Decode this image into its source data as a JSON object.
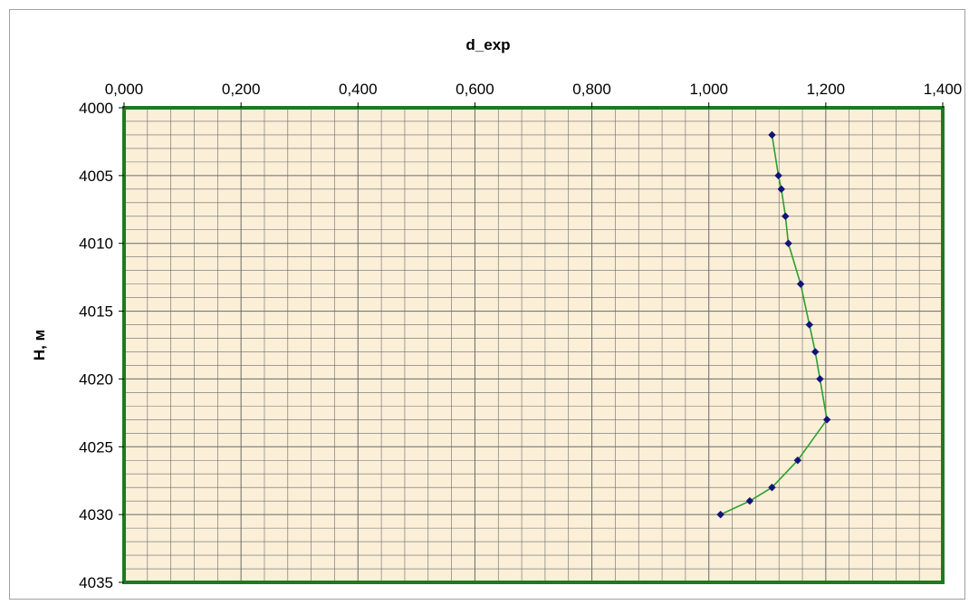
{
  "chart_data": {
    "type": "line",
    "title": "",
    "xlabel": "d_exp",
    "ylabel": "H, м",
    "x_axis_position": "top",
    "y_axis_inverted": true,
    "xlim": [
      0,
      1.4
    ],
    "ylim": [
      4000,
      4035
    ],
    "x_major_step": 0.2,
    "x_minor_step": 0.04,
    "y_major_step": 5,
    "y_minor_step": 1,
    "x_tick_labels": [
      "0,000",
      "0,200",
      "0,400",
      "0,600",
      "0,800",
      "1,000",
      "1,200",
      "1,400"
    ],
    "y_tick_labels": [
      "4000",
      "4005",
      "4010",
      "4015",
      "4020",
      "4025",
      "4030",
      "4035"
    ],
    "grid": true,
    "legend": "none",
    "colors": {
      "plot_background": "#fbefd8",
      "plot_border": "#1f7a1f",
      "grid_line": "#6a6a6a",
      "series_line": "#2ea02e",
      "marker": "#13137a"
    },
    "series": [
      {
        "name": "",
        "points": [
          {
            "x": 1.108,
            "y": 4002
          },
          {
            "x": 1.119,
            "y": 4005
          },
          {
            "x": 1.124,
            "y": 4006
          },
          {
            "x": 1.131,
            "y": 4008
          },
          {
            "x": 1.136,
            "y": 4010
          },
          {
            "x": 1.157,
            "y": 4013
          },
          {
            "x": 1.172,
            "y": 4016
          },
          {
            "x": 1.182,
            "y": 4018
          },
          {
            "x": 1.19,
            "y": 4020
          },
          {
            "x": 1.202,
            "y": 4023
          },
          {
            "x": 1.152,
            "y": 4026
          },
          {
            "x": 1.108,
            "y": 4028
          },
          {
            "x": 1.07,
            "y": 4029
          },
          {
            "x": 1.02,
            "y": 4030
          }
        ]
      }
    ]
  }
}
